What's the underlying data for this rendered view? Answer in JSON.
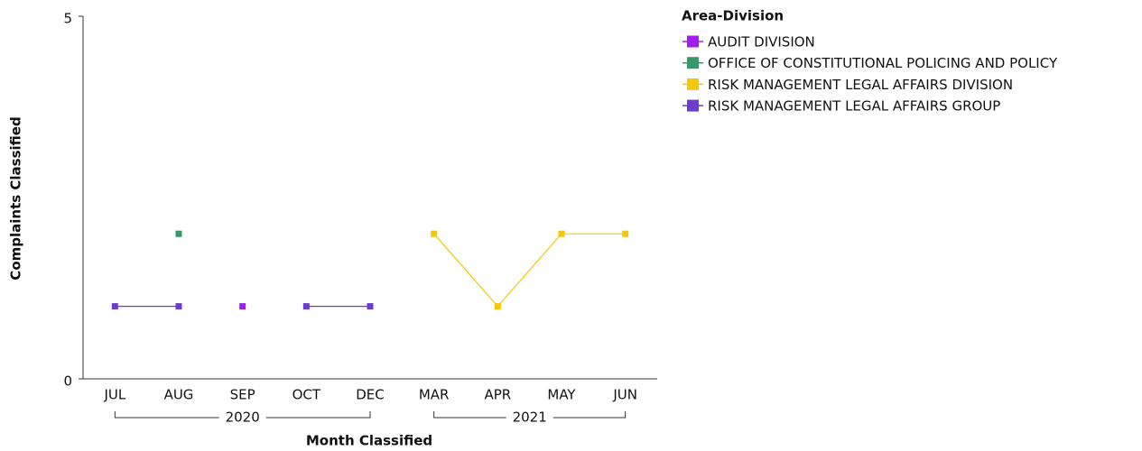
{
  "chart_data": {
    "type": "line",
    "x_label": "Month Classified",
    "y_label": "Complaints Classified",
    "categories": [
      "JUL",
      "AUG",
      "SEP",
      "OCT",
      "DEC",
      "MAR",
      "APR",
      "MAY",
      "JUN"
    ],
    "category_groups": [
      {
        "label": "2020",
        "span": 5
      },
      {
        "label": "2021",
        "span": 4
      }
    ],
    "ylim": [
      0,
      5
    ],
    "yticks": [
      0,
      5
    ],
    "legend_title": "Area-Division",
    "legend": "top-right",
    "series": [
      {
        "name": "AUDIT DIVISION",
        "color": "#a01ff0",
        "values": [
          null,
          null,
          1,
          null,
          null,
          null,
          null,
          null,
          null
        ]
      },
      {
        "name": "OFFICE OF CONSTITUTIONAL POLICING AND POLICY",
        "color": "#339a6c",
        "values": [
          null,
          2,
          null,
          null,
          null,
          null,
          null,
          null,
          null
        ]
      },
      {
        "name": "RISK MANAGEMENT LEGAL AFFAIRS DIVISION",
        "color": "#f5c60a",
        "values": [
          null,
          null,
          null,
          null,
          null,
          2,
          1,
          2,
          2
        ]
      },
      {
        "name": "RISK MANAGEMENT LEGAL AFFAIRS GROUP",
        "color": "#6c3ccf",
        "values": [
          1,
          1,
          null,
          1,
          1,
          null,
          null,
          null,
          null
        ]
      }
    ]
  }
}
